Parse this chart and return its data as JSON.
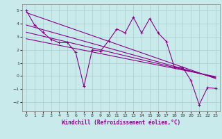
{
  "xlabel": "Windchill (Refroidissement éolien,°C)",
  "bg_color": "#c8eaea",
  "line_color": "#880088",
  "grid_color": "#aacccc",
  "xlim": [
    -0.5,
    23.5
  ],
  "ylim": [
    -2.7,
    5.5
  ],
  "xticks": [
    0,
    1,
    2,
    3,
    4,
    5,
    6,
    7,
    8,
    9,
    10,
    11,
    12,
    13,
    14,
    15,
    16,
    17,
    18,
    19,
    20,
    21,
    22,
    23
  ],
  "yticks": [
    -2,
    -1,
    0,
    1,
    2,
    3,
    4,
    5
  ],
  "series": [
    [
      0,
      5.0
    ],
    [
      1,
      3.9
    ],
    [
      2,
      3.35
    ],
    [
      3,
      2.8
    ],
    [
      4,
      2.55
    ],
    [
      5,
      2.55
    ],
    [
      6,
      1.8
    ],
    [
      7,
      -0.8
    ],
    [
      8,
      2.0
    ],
    [
      9,
      1.9
    ],
    [
      10,
      2.7
    ],
    [
      11,
      3.6
    ],
    [
      12,
      3.3
    ],
    [
      13,
      4.5
    ],
    [
      14,
      3.3
    ],
    [
      15,
      4.4
    ],
    [
      16,
      3.3
    ],
    [
      17,
      2.65
    ],
    [
      18,
      0.65
    ],
    [
      19,
      0.65
    ],
    [
      20,
      -0.35
    ],
    [
      21,
      -2.2
    ],
    [
      22,
      -0.9
    ],
    [
      23,
      -0.95
    ]
  ],
  "trend_lines": [
    {
      "x": [
        0,
        23
      ],
      "y": [
        4.85,
        -0.2
      ]
    },
    {
      "x": [
        0,
        23
      ],
      "y": [
        3.9,
        -0.15
      ]
    },
    {
      "x": [
        0,
        23
      ],
      "y": [
        3.35,
        -0.1
      ]
    },
    {
      "x": [
        0,
        23
      ],
      "y": [
        2.85,
        -0.05
      ]
    }
  ]
}
